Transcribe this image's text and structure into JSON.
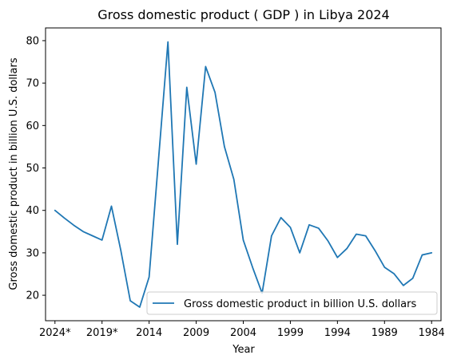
{
  "chart_data": {
    "type": "line",
    "title": "Gross domestic product ( GDP ) in Libya 2024",
    "xlabel": "Year",
    "ylabel": "Gross domestic product in billion U.S. dollars",
    "x_reversed": true,
    "xlim": [
      2025,
      1983
    ],
    "ylim": [
      14,
      83
    ],
    "grid": false,
    "legend_position": "lower-right",
    "x_ticks": [
      {
        "value": 2024,
        "label": "2024*"
      },
      {
        "value": 2019,
        "label": "2019*"
      },
      {
        "value": 2014,
        "label": "2014"
      },
      {
        "value": 2009,
        "label": "2009"
      },
      {
        "value": 2004,
        "label": "2004"
      },
      {
        "value": 1999,
        "label": "1999"
      },
      {
        "value": 1994,
        "label": "1994"
      },
      {
        "value": 1989,
        "label": "1989"
      },
      {
        "value": 1984,
        "label": "1984"
      }
    ],
    "y_ticks": [
      {
        "value": 20,
        "label": "20"
      },
      {
        "value": 30,
        "label": "30"
      },
      {
        "value": 40,
        "label": "40"
      },
      {
        "value": 50,
        "label": "50"
      },
      {
        "value": 60,
        "label": "60"
      },
      {
        "value": 70,
        "label": "70"
      },
      {
        "value": 80,
        "label": "80"
      }
    ],
    "series": [
      {
        "name": "Gross domestic product in billion U.S. dollars",
        "color": "#1f77b4",
        "x": [
          2024,
          2023,
          2022,
          2021,
          2020,
          2019,
          2018,
          2017,
          2016,
          2015,
          2014,
          2013,
          2012,
          2011,
          2010,
          2009,
          2008,
          2007,
          2006,
          2005,
          2004,
          2003,
          2002,
          2001,
          2000,
          1999,
          1998,
          1997,
          1996,
          1995,
          1994,
          1993,
          1992,
          1991,
          1990,
          1989,
          1988,
          1987,
          1986,
          1985,
          1984
        ],
        "y": [
          40.0,
          38.2,
          36.5,
          35.0,
          34.0,
          33.0,
          41.0,
          30.5,
          18.7,
          17.2,
          24.3,
          52.0,
          79.7,
          32.0,
          69.0,
          50.9,
          73.9,
          67.8,
          55.0,
          47.3,
          33.0,
          26.5,
          20.5,
          34.0,
          38.3,
          36.0,
          30.0,
          36.6,
          35.8,
          32.8,
          28.9,
          31.0,
          34.4,
          34.0,
          30.5,
          26.6,
          25.1,
          22.3,
          24.0,
          29.5,
          30.0
        ]
      }
    ]
  },
  "colors": {
    "series": "#1f77b4",
    "axes": "#000000",
    "background": "#ffffff",
    "legend_border": "#cccccc"
  }
}
